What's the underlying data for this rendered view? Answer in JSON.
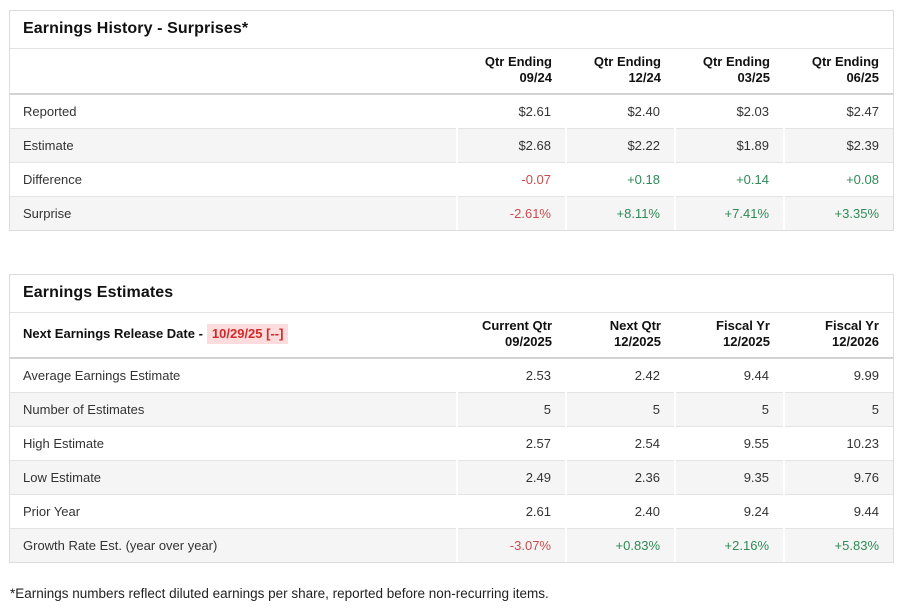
{
  "colors": {
    "positive": "#2e8b57",
    "negative": "#cc4b4d",
    "release_date_text": "#d22a2a",
    "release_date_highlight": "#fcdcdc",
    "zebra_row": "#f5f5f5",
    "panel_border": "#dcdcdc"
  },
  "earnings_history": {
    "title": "Earnings History - Surprises*",
    "label_column_header": "",
    "columns": [
      {
        "line1": "Qtr Ending",
        "line2": "09/24"
      },
      {
        "line1": "Qtr Ending",
        "line2": "12/24"
      },
      {
        "line1": "Qtr Ending",
        "line2": "03/25"
      },
      {
        "line1": "Qtr Ending",
        "line2": "06/25"
      }
    ],
    "rows": [
      {
        "label": "Reported",
        "values": [
          "$2.61",
          "$2.40",
          "$2.03",
          "$2.47"
        ],
        "tones": [
          "neutral",
          "neutral",
          "neutral",
          "neutral"
        ]
      },
      {
        "label": "Estimate",
        "values": [
          "$2.68",
          "$2.22",
          "$1.89",
          "$2.39"
        ],
        "tones": [
          "neutral",
          "neutral",
          "neutral",
          "neutral"
        ]
      },
      {
        "label": "Difference",
        "values": [
          "-0.07",
          "+0.18",
          "+0.14",
          "+0.08"
        ],
        "tones": [
          "negative",
          "positive",
          "positive",
          "positive"
        ]
      },
      {
        "label": "Surprise",
        "values": [
          "-2.61%",
          "+8.11%",
          "+7.41%",
          "+3.35%"
        ],
        "tones": [
          "negative",
          "positive",
          "positive",
          "positive"
        ]
      }
    ]
  },
  "earnings_estimates": {
    "title": "Earnings Estimates",
    "release_label": "Next Earnings Release Date -",
    "release_date": "10/29/25 [--]",
    "columns": [
      {
        "line1": "Current Qtr",
        "line2": "09/2025"
      },
      {
        "line1": "Next Qtr",
        "line2": "12/2025"
      },
      {
        "line1": "Fiscal Yr",
        "line2": "12/2025"
      },
      {
        "line1": "Fiscal Yr",
        "line2": "12/2026"
      }
    ],
    "rows": [
      {
        "label": "Average Earnings Estimate",
        "values": [
          "2.53",
          "2.42",
          "9.44",
          "9.99"
        ],
        "tones": [
          "neutral",
          "neutral",
          "neutral",
          "neutral"
        ]
      },
      {
        "label": "Number of Estimates",
        "values": [
          "5",
          "5",
          "5",
          "5"
        ],
        "tones": [
          "neutral",
          "neutral",
          "neutral",
          "neutral"
        ]
      },
      {
        "label": "High Estimate",
        "values": [
          "2.57",
          "2.54",
          "9.55",
          "10.23"
        ],
        "tones": [
          "neutral",
          "neutral",
          "neutral",
          "neutral"
        ]
      },
      {
        "label": "Low Estimate",
        "values": [
          "2.49",
          "2.36",
          "9.35",
          "9.76"
        ],
        "tones": [
          "neutral",
          "neutral",
          "neutral",
          "neutral"
        ]
      },
      {
        "label": "Prior Year",
        "values": [
          "2.61",
          "2.40",
          "9.24",
          "9.44"
        ],
        "tones": [
          "neutral",
          "neutral",
          "neutral",
          "neutral"
        ]
      },
      {
        "label": "Growth Rate Est. (year over year)",
        "values": [
          "-3.07%",
          "+0.83%",
          "+2.16%",
          "+5.83%"
        ],
        "tones": [
          "negative",
          "positive",
          "positive",
          "positive"
        ]
      }
    ]
  },
  "footnote": "*Earnings numbers reflect diluted earnings per share, reported before non-recurring items."
}
